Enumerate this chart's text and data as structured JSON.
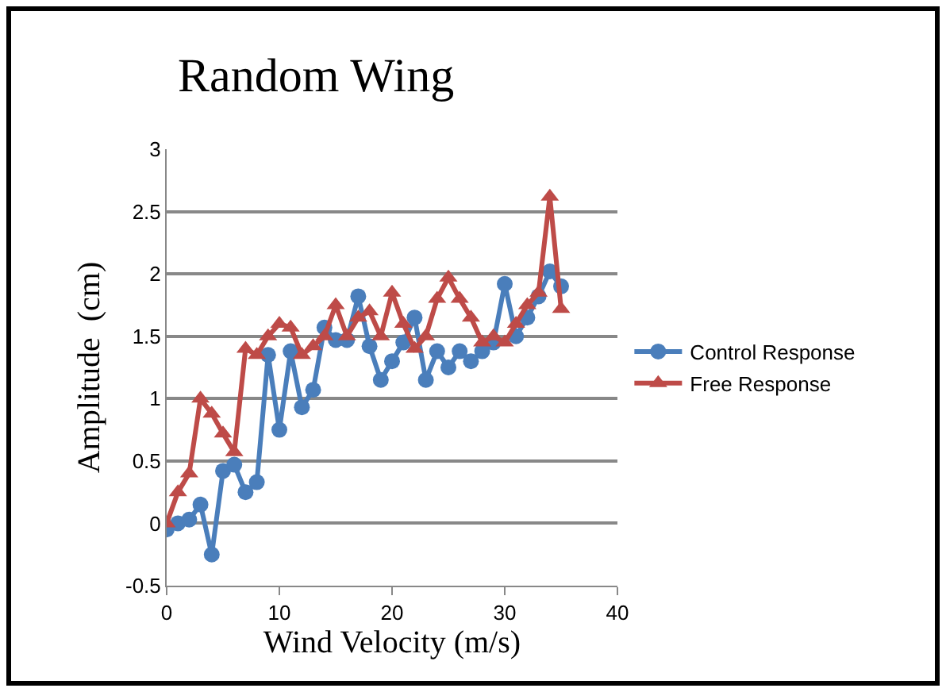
{
  "chart_data": {
    "type": "line",
    "title": "Random Wing",
    "xlabel": "Wind Velocity (m/s)",
    "ylabel": "Amplitude  (cm)",
    "x": [
      0,
      1,
      2,
      3,
      4,
      5,
      6,
      7,
      8,
      9,
      10,
      11,
      12,
      13,
      14,
      15,
      16,
      17,
      18,
      19,
      20,
      21,
      22,
      23,
      24,
      25,
      26,
      27,
      28,
      29,
      30,
      31,
      32,
      33,
      34,
      35
    ],
    "series": [
      {
        "name": "Control Response",
        "color": "#4a7ebb",
        "marker": "circle",
        "values": [
          -0.05,
          0,
          0.03,
          0.15,
          -0.25,
          0.42,
          0.47,
          0.25,
          0.33,
          1.35,
          0.75,
          1.38,
          0.93,
          1.07,
          1.57,
          1.47,
          1.47,
          1.82,
          1.42,
          1.15,
          1.3,
          1.45,
          1.65,
          1.15,
          1.38,
          1.25,
          1.38,
          1.3,
          1.38,
          1.45,
          1.92,
          1.5,
          1.65,
          1.82,
          2.02,
          1.9
        ]
      },
      {
        "name": "Free Response",
        "color": "#be4b48",
        "marker": "triangle",
        "values": [
          0,
          0.25,
          0.4,
          1.0,
          0.88,
          0.72,
          0.57,
          1.4,
          1.35,
          1.5,
          1.6,
          1.57,
          1.35,
          1.42,
          1.5,
          1.75,
          1.5,
          1.65,
          1.7,
          1.5,
          1.85,
          1.6,
          1.4,
          1.5,
          1.8,
          1.97,
          1.8,
          1.65,
          1.45,
          1.5,
          1.45,
          1.6,
          1.75,
          1.85,
          2.62,
          1.72
        ]
      }
    ],
    "xlim": [
      0,
      40
    ],
    "xticks": [
      0,
      10,
      20,
      30,
      40
    ],
    "ylim": [
      -0.5,
      3
    ],
    "yticks": [
      -0.5,
      0,
      0.5,
      1,
      1.5,
      2,
      2.5,
      3
    ],
    "grid": "y",
    "legend": "right",
    "line_style": "solid"
  }
}
